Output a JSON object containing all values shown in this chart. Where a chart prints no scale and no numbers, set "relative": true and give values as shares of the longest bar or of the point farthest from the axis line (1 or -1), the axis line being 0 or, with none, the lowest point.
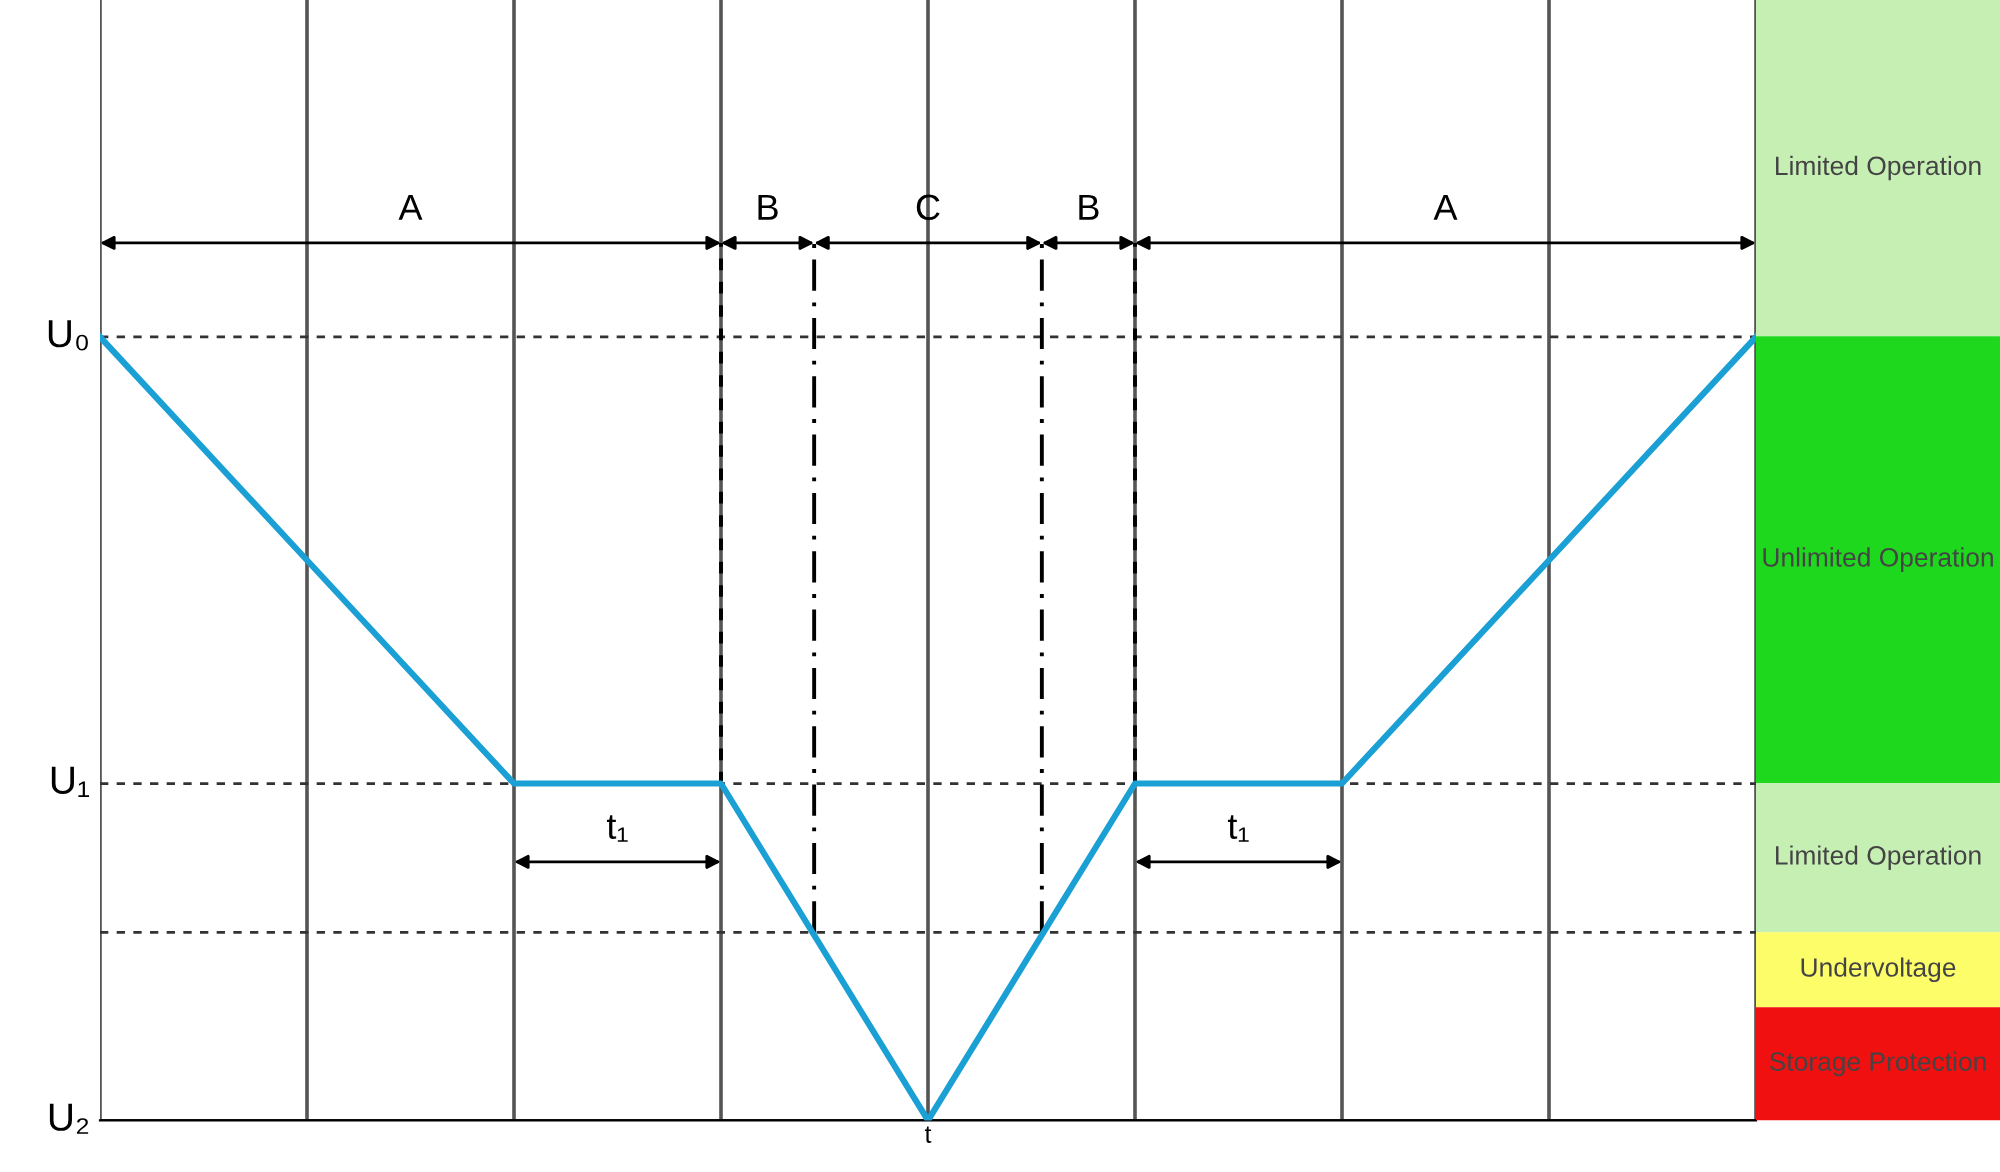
{
  "chart_data": [
    {
      "type": "line",
      "relative": true,
      "xlabel": "t",
      "categories": [
        null,
        null,
        null,
        null,
        null,
        null,
        null,
        null,
        null
      ],
      "grid": "x",
      "series": [
        {
          "color": "#1aa0d4",
          "values": [
            1,
            0.715,
            0.43,
            0.43,
            0,
            0.43,
            0.43,
            0.715,
            1
          ]
        }
      ],
      "ref_lines": [
        {
          "axis": "y",
          "value": 1,
          "label": "U₀",
          "line_style": "dashed",
          "color": "#333333"
        },
        {
          "axis": "y",
          "value": 0.43,
          "label": "U₁",
          "line_style": "dashed",
          "color": "#333333"
        },
        {
          "axis": "y",
          "value": 0.24,
          "label": null,
          "line_style": "dashed",
          "color": "#333333"
        },
        {
          "axis": "y",
          "value": 0,
          "label": "U₂",
          "line_style": "solid",
          "color": "#333333"
        }
      ],
      "annotations": [
        "A",
        "B",
        "C",
        "B",
        "A",
        "t₁",
        "t₁"
      ]
    },
    {
      "type": "other",
      "annotations": [
        "Limited Operation",
        "Unlimited Operation",
        "Limited Operation",
        "Undervoltage",
        "Storage Protection"
      ],
      "colors": [
        "#c6efb4",
        "#1ed81e",
        "#c6efb4",
        "#fdfd6a",
        "#f01010"
      ]
    }
  ]
}
